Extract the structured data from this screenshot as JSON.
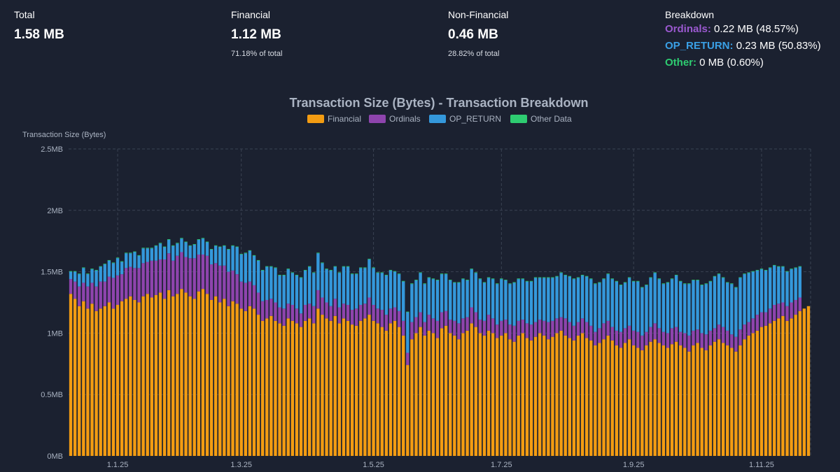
{
  "stats": {
    "total": {
      "label": "Total",
      "value": "1.58 MB"
    },
    "financial": {
      "label": "Financial",
      "value": "1.12 MB",
      "sub": "71.18% of total"
    },
    "non_financial": {
      "label": "Non-Financial",
      "value": "0.46 MB",
      "sub": "28.82% of total"
    },
    "breakdown": {
      "label": "Breakdown",
      "items": [
        {
          "name": "Ordinals:",
          "value": "0.22 MB (48.57%)",
          "color": "#9b59d0"
        },
        {
          "name": "OP_RETURN:",
          "value": "0.23 MB (50.83%)",
          "color": "#3498db"
        },
        {
          "name": "Other:",
          "value": "0 MB (0.60%)",
          "color": "#2ecc71"
        }
      ]
    }
  },
  "colors": {
    "financial": "#f39c12",
    "ordinals": "#8e44ad",
    "op_return": "#3498db",
    "other": "#2ecc71",
    "background": "#1b2130",
    "grid": "#3a4252"
  },
  "chart_data": {
    "type": "bar",
    "stacked": true,
    "title": "Transaction Size (Bytes) - Transaction Breakdown",
    "ylabel": "Transaction Size (Bytes)",
    "xlabel": "",
    "ylim": [
      0,
      2.5
    ],
    "yticks": [
      {
        "value": 0,
        "label": "0MB"
      },
      {
        "value": 0.5,
        "label": "0.5MB"
      },
      {
        "value": 1,
        "label": "1MB"
      },
      {
        "value": 1.5,
        "label": "1.5MB"
      },
      {
        "value": 2,
        "label": "2MB"
      },
      {
        "value": 2.5,
        "label": "2.5MB"
      }
    ],
    "xticks": [
      {
        "index": 11,
        "label": "1.1.25"
      },
      {
        "index": 40,
        "label": "1.3.25"
      },
      {
        "index": 71,
        "label": "1.5.25"
      },
      {
        "index": 101,
        "label": "1.7.25"
      },
      {
        "index": 132,
        "label": "1.9.25"
      },
      {
        "index": 162,
        "label": "1.11.25"
      }
    ],
    "legend": [
      "Financial",
      "Ordinals",
      "OP_RETURN",
      "Other Data"
    ],
    "grid": true,
    "series": [
      {
        "name": "Financial",
        "values": [
          1.32,
          1.28,
          1.22,
          1.26,
          1.2,
          1.24,
          1.18,
          1.2,
          1.22,
          1.25,
          1.2,
          1.23,
          1.26,
          1.28,
          1.3,
          1.27,
          1.25,
          1.3,
          1.32,
          1.29,
          1.31,
          1.33,
          1.28,
          1.35,
          1.3,
          1.32,
          1.36,
          1.33,
          1.3,
          1.28,
          1.34,
          1.36,
          1.32,
          1.27,
          1.3,
          1.25,
          1.28,
          1.22,
          1.26,
          1.24,
          1.2,
          1.18,
          1.22,
          1.2,
          1.15,
          1.1,
          1.12,
          1.14,
          1.1,
          1.08,
          1.06,
          1.12,
          1.1,
          1.08,
          1.05,
          1.1,
          1.12,
          1.08,
          1.2,
          1.15,
          1.12,
          1.1,
          1.14,
          1.08,
          1.12,
          1.1,
          1.07,
          1.06,
          1.1,
          1.12,
          1.15,
          1.1,
          1.08,
          1.05,
          1.02,
          1.08,
          1.1,
          1.05,
          0.98,
          0.74,
          0.95,
          1.0,
          1.05,
          0.98,
          1.02,
          1.0,
          0.96,
          1.04,
          1.06,
          1.0,
          0.98,
          0.95,
          1.0,
          1.02,
          1.08,
          1.05,
          1.0,
          0.98,
          1.02,
          1.0,
          0.96,
          0.98,
          1.0,
          0.95,
          0.93,
          0.98,
          1.0,
          0.96,
          0.94,
          0.97,
          1.0,
          0.98,
          0.95,
          0.97,
          1.0,
          1.02,
          0.98,
          0.96,
          0.94,
          0.98,
          1.0,
          0.96,
          0.94,
          0.9,
          0.92,
          0.95,
          0.98,
          0.94,
          0.9,
          0.88,
          0.92,
          0.95,
          0.9,
          0.88,
          0.86,
          0.9,
          0.93,
          0.95,
          0.92,
          0.9,
          0.88,
          0.91,
          0.93,
          0.9,
          0.88,
          0.85,
          0.9,
          0.92,
          0.88,
          0.86,
          0.9,
          0.93,
          0.95,
          0.92,
          0.9,
          0.88,
          0.85,
          0.9,
          0.95,
          0.98,
          1.0,
          1.02,
          1.05,
          1.06,
          1.08,
          1.1,
          1.12,
          1.14,
          1.1,
          1.12,
          1.15,
          1.18,
          1.2,
          1.22
        ]
      },
      {
        "name": "Ordinals",
        "values": [
          0.12,
          0.14,
          0.16,
          0.15,
          0.18,
          0.17,
          0.2,
          0.22,
          0.2,
          0.21,
          0.25,
          0.24,
          0.22,
          0.25,
          0.24,
          0.26,
          0.28,
          0.27,
          0.26,
          0.3,
          0.28,
          0.27,
          0.32,
          0.3,
          0.29,
          0.31,
          0.3,
          0.29,
          0.31,
          0.33,
          0.3,
          0.28,
          0.31,
          0.29,
          0.27,
          0.3,
          0.27,
          0.28,
          0.25,
          0.24,
          0.22,
          0.23,
          0.2,
          0.19,
          0.18,
          0.16,
          0.15,
          0.14,
          0.15,
          0.13,
          0.14,
          0.12,
          0.13,
          0.12,
          0.11,
          0.13,
          0.12,
          0.14,
          0.15,
          0.14,
          0.13,
          0.12,
          0.14,
          0.13,
          0.12,
          0.13,
          0.12,
          0.14,
          0.13,
          0.12,
          0.14,
          0.13,
          0.12,
          0.14,
          0.13,
          0.12,
          0.11,
          0.13,
          0.12,
          0.1,
          0.14,
          0.13,
          0.12,
          0.11,
          0.13,
          0.12,
          0.14,
          0.13,
          0.12,
          0.11,
          0.12,
          0.13,
          0.12,
          0.11,
          0.13,
          0.12,
          0.11,
          0.12,
          0.13,
          0.12,
          0.11,
          0.12,
          0.11,
          0.12,
          0.13,
          0.12,
          0.11,
          0.12,
          0.13,
          0.12,
          0.11,
          0.12,
          0.14,
          0.13,
          0.12,
          0.11,
          0.14,
          0.13,
          0.12,
          0.11,
          0.12,
          0.13,
          0.12,
          0.11,
          0.12,
          0.13,
          0.12,
          0.11,
          0.12,
          0.13,
          0.12,
          0.11,
          0.12,
          0.13,
          0.12,
          0.11,
          0.12,
          0.13,
          0.12,
          0.11,
          0.12,
          0.13,
          0.12,
          0.11,
          0.12,
          0.13,
          0.12,
          0.11,
          0.12,
          0.13,
          0.12,
          0.11,
          0.12,
          0.13,
          0.12,
          0.11,
          0.12,
          0.13,
          0.12,
          0.11,
          0.12,
          0.13,
          0.12,
          0.11,
          0.12,
          0.13,
          0.12,
          0.11,
          0.12,
          0.13,
          0.12,
          0.11
        ]
      },
      {
        "name": "OP_RETURN",
        "values": [
          0.06,
          0.08,
          0.1,
          0.12,
          0.1,
          0.11,
          0.13,
          0.12,
          0.14,
          0.13,
          0.12,
          0.14,
          0.1,
          0.12,
          0.11,
          0.13,
          0.1,
          0.12,
          0.11,
          0.1,
          0.12,
          0.13,
          0.1,
          0.11,
          0.12,
          0.1,
          0.11,
          0.12,
          0.1,
          0.11,
          0.12,
          0.13,
          0.11,
          0.12,
          0.14,
          0.15,
          0.16,
          0.18,
          0.2,
          0.22,
          0.22,
          0.24,
          0.25,
          0.24,
          0.26,
          0.25,
          0.27,
          0.26,
          0.28,
          0.26,
          0.27,
          0.28,
          0.26,
          0.27,
          0.29,
          0.28,
          0.3,
          0.27,
          0.3,
          0.28,
          0.27,
          0.29,
          0.26,
          0.28,
          0.3,
          0.31,
          0.29,
          0.28,
          0.3,
          0.29,
          0.31,
          0.3,
          0.29,
          0.3,
          0.32,
          0.31,
          0.29,
          0.3,
          0.32,
          0.33,
          0.31,
          0.3,
          0.32,
          0.31,
          0.3,
          0.32,
          0.33,
          0.31,
          0.3,
          0.32,
          0.31,
          0.33,
          0.32,
          0.3,
          0.31,
          0.32,
          0.33,
          0.31,
          0.3,
          0.32,
          0.33,
          0.34,
          0.32,
          0.33,
          0.35,
          0.34,
          0.33,
          0.34,
          0.35,
          0.36,
          0.34,
          0.35,
          0.36,
          0.35,
          0.34,
          0.36,
          0.35,
          0.37,
          0.38,
          0.36,
          0.35,
          0.37,
          0.38,
          0.39,
          0.37,
          0.36,
          0.38,
          0.39,
          0.4,
          0.38,
          0.37,
          0.39,
          0.4,
          0.41,
          0.39,
          0.38,
          0.4,
          0.41,
          0.4,
          0.39,
          0.41,
          0.4,
          0.42,
          0.41,
          0.4,
          0.42,
          0.41,
          0.4,
          0.39,
          0.41,
          0.4,
          0.42,
          0.41,
          0.4,
          0.39,
          0.41,
          0.4,
          0.42,
          0.41,
          0.4,
          0.38,
          0.36,
          0.35,
          0.34,
          0.33,
          0.32,
          0.3,
          0.29,
          0.28,
          0.27,
          0.26,
          0.25
        ]
      },
      {
        "name": "Other Data",
        "values": [
          0.005,
          0.005,
          0.005,
          0.005,
          0.005,
          0.005,
          0.005,
          0.005,
          0.005,
          0.005,
          0.005,
          0.005,
          0.005,
          0.005,
          0.005,
          0.005,
          0.005,
          0.005,
          0.005,
          0.005,
          0.005,
          0.005,
          0.005,
          0.005,
          0.005,
          0.005,
          0.005,
          0.005,
          0.005,
          0.005,
          0.005,
          0.005,
          0.005,
          0.005,
          0.005,
          0.005,
          0.005,
          0.005,
          0.005,
          0.005,
          0.005,
          0.005,
          0.005,
          0.005,
          0.005,
          0.005,
          0.005,
          0.005,
          0.005,
          0.005,
          0.005,
          0.005,
          0.005,
          0.005,
          0.005,
          0.005,
          0.005,
          0.005,
          0.005,
          0.005,
          0.005,
          0.005,
          0.005,
          0.005,
          0.005,
          0.005,
          0.005,
          0.005,
          0.005,
          0.005,
          0.005,
          0.005,
          0.005,
          0.005,
          0.005,
          0.005,
          0.005,
          0.005,
          0.005,
          0.005,
          0.005,
          0.005,
          0.005,
          0.005,
          0.005,
          0.005,
          0.005,
          0.005,
          0.005,
          0.005,
          0.005,
          0.005,
          0.005,
          0.005,
          0.005,
          0.005,
          0.005,
          0.005,
          0.005,
          0.005,
          0.005,
          0.005,
          0.005,
          0.005,
          0.005,
          0.005,
          0.005,
          0.005,
          0.005,
          0.005,
          0.005,
          0.005,
          0.005,
          0.005,
          0.005,
          0.005,
          0.005,
          0.005,
          0.005,
          0.005,
          0.005,
          0.005,
          0.005,
          0.005,
          0.005,
          0.005,
          0.005,
          0.005,
          0.005,
          0.005,
          0.005,
          0.005,
          0.005,
          0.005,
          0.005,
          0.005,
          0.005,
          0.005,
          0.005,
          0.005,
          0.005,
          0.005,
          0.005,
          0.005,
          0.005,
          0.005,
          0.005,
          0.005,
          0.005,
          0.005,
          0.005,
          0.005,
          0.005,
          0.005,
          0.005,
          0.005,
          0.005,
          0.005,
          0.005,
          0.005,
          0.005,
          0.005,
          0.005,
          0.005,
          0.005,
          0.005,
          0.005,
          0.005,
          0.005,
          0.005,
          0.005,
          0.005,
          0.005,
          0.005,
          0.005,
          0.005,
          0.005,
          0.005
        ]
      }
    ]
  }
}
